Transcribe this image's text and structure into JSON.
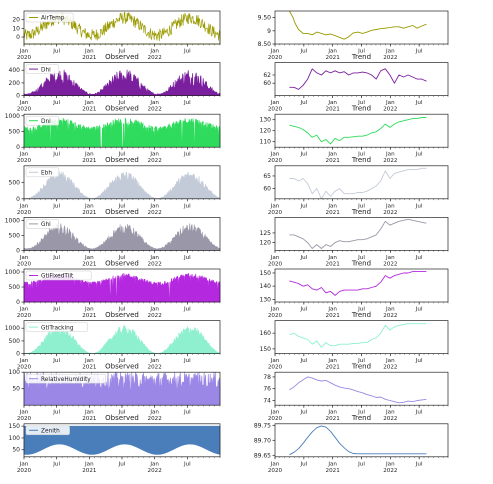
{
  "x_tick_labels": [
    {
      "month": "Jan",
      "year": "2020"
    },
    {
      "month": "Jul",
      "year": ""
    },
    {
      "month": "Jan",
      "year": "2021"
    },
    {
      "month": "Jul",
      "year": ""
    },
    {
      "month": "Jan",
      "year": "2022"
    },
    {
      "month": "Jul",
      "year": ""
    }
  ],
  "left_subtitle": "Observed",
  "right_subtitle": "Trend",
  "chart_data": [
    {
      "type": "area",
      "panel": "observed",
      "variable": "AirTemp",
      "color": "#9a9a00",
      "ylim": [
        -8,
        30
      ],
      "yticks": [
        0,
        10,
        20
      ],
      "x_range": [
        "2020-01",
        "2022-12"
      ],
      "pattern": "seasonal sine, mean ~12, amplitude ~10, high noise"
    },
    {
      "type": "area",
      "panel": "observed",
      "variable": "Dhi",
      "color": "#7a1f9e",
      "ylim": [
        0,
        520
      ],
      "yticks": [
        0,
        200,
        400
      ],
      "x_range": [
        "2020-01",
        "2022-12"
      ],
      "pattern": "seasonal peak in summer ~450"
    },
    {
      "type": "area",
      "panel": "observed",
      "variable": "Dni",
      "color": "#2edb5c",
      "ylim": [
        0,
        1050
      ],
      "yticks": [
        0,
        500,
        1000
      ],
      "x_range": [
        "2020-01",
        "2022-12"
      ],
      "pattern": "dense bars up to ~950 with gaps"
    },
    {
      "type": "area",
      "panel": "observed",
      "variable": "Ebh",
      "color": "#c4cbd8",
      "ylim": [
        0,
        1000
      ],
      "yticks": [
        0,
        500
      ],
      "x_range": [
        "2020-01",
        "2022-12"
      ],
      "pattern": "seasonal peak ~850 in summer"
    },
    {
      "type": "area",
      "panel": "observed",
      "variable": "Ghi",
      "color": "#9a98a8",
      "ylim": [
        0,
        1100
      ],
      "yticks": [
        0,
        500,
        1000
      ],
      "x_range": [
        "2020-01",
        "2022-12"
      ],
      "pattern": "seasonal peak ~900 in summer"
    },
    {
      "type": "area",
      "panel": "observed",
      "variable": "GtiFixedTilt",
      "color": "#b428e0",
      "ylim": [
        0,
        1100
      ],
      "yticks": [
        0,
        500,
        1000
      ],
      "x_range": [
        "2020-01",
        "2022-12"
      ],
      "pattern": "dense bars ~950 with winter dips"
    },
    {
      "type": "area",
      "panel": "observed",
      "variable": "GtiTracking",
      "color": "#8ff0d0",
      "ylim": [
        0,
        1300
      ],
      "yticks": [
        0,
        500,
        1000
      ],
      "x_range": [
        "2020-01",
        "2022-12"
      ],
      "pattern": "seasonal peak ~1100 in summer"
    },
    {
      "type": "area",
      "panel": "observed",
      "variable": "RelativeHumidity",
      "color": "#9b88e6",
      "ylim": [
        0,
        100
      ],
      "yticks": [
        50,
        100
      ],
      "x_range": [
        "2020-01",
        "2022-12"
      ],
      "pattern": "noisy 20-100, mean ~70"
    },
    {
      "type": "area",
      "panel": "observed",
      "variable": "Zenith",
      "color": "#4a7ebb",
      "ylim": [
        20,
        160
      ],
      "yticks": [
        50,
        100,
        150
      ],
      "x_range": [
        "2020-01",
        "2022-12"
      ],
      "pattern": "daily range band ~30-150 with seasonal shift"
    },
    {
      "type": "line",
      "panel": "trend",
      "color": "#9a9a00",
      "x": [
        0,
        0.8,
        1.2,
        2,
        3,
        4,
        5,
        6,
        7,
        8,
        9,
        10,
        11,
        12,
        12.8,
        13.5,
        14,
        15,
        16,
        17,
        18,
        19,
        20,
        21,
        22,
        23,
        24,
        25,
        26,
        27,
        28,
        29,
        30
      ],
      "y": [
        9.75,
        9.5,
        9.3,
        9.05,
        8.9,
        8.9,
        8.85,
        8.95,
        8.9,
        8.85,
        8.88,
        8.82,
        8.75,
        8.68,
        8.75,
        8.85,
        8.92,
        8.95,
        8.9,
        8.95,
        9.02,
        9.05,
        9.08,
        9.1,
        9.12,
        9.15,
        9.15,
        9.1,
        9.15,
        9.2,
        9.1,
        9.18,
        9.25
      ],
      "ylim": [
        8.5,
        9.75
      ],
      "yticks": [
        8.5,
        9.0,
        9.5
      ]
    },
    {
      "type": "line",
      "panel": "trend",
      "color": "#7a1f9e",
      "x": [
        0,
        1,
        2,
        3,
        4,
        5,
        6,
        7,
        8,
        9,
        10,
        11,
        12,
        13,
        14,
        15,
        16,
        17,
        18,
        19,
        20,
        21,
        22,
        23,
        24,
        25,
        26,
        27,
        28,
        29,
        30
      ],
      "y": [
        59,
        59,
        58.5,
        59.5,
        61,
        63.5,
        62.5,
        62,
        63,
        62.5,
        63,
        62.5,
        62.8,
        62,
        62.5,
        62.5,
        62.7,
        62.5,
        62,
        61,
        63,
        63.5,
        62,
        60,
        62,
        61.5,
        62,
        61.5,
        61,
        61,
        60.5
      ],
      "ylim": [
        57,
        65
      ],
      "yticks": [
        60,
        62
      ]
    },
    {
      "type": "line",
      "panel": "trend",
      "color": "#2edb5c",
      "x": [
        0,
        1,
        2,
        3,
        4,
        5,
        6,
        7,
        8,
        9,
        10,
        11,
        12,
        13,
        14,
        15,
        16,
        17,
        18,
        19,
        20,
        21,
        22,
        23,
        24,
        25,
        26,
        27,
        28,
        29,
        30
      ],
      "y": [
        125,
        124,
        123,
        121,
        118,
        114,
        116,
        110,
        112,
        108,
        113,
        111,
        114,
        114,
        114.5,
        115,
        115,
        116,
        118,
        119,
        122,
        126,
        123,
        126,
        128,
        129,
        130,
        131,
        131,
        132,
        132
      ],
      "ylim": [
        105,
        135
      ],
      "yticks": [
        110,
        120,
        130
      ]
    },
    {
      "type": "line",
      "panel": "trend",
      "color": "#c4cbd8",
      "x": [
        0,
        1,
        2,
        3,
        4,
        5,
        6,
        7,
        8,
        9,
        10,
        11,
        12,
        13,
        14,
        15,
        16,
        17,
        18,
        19,
        20,
        21,
        22,
        23,
        24,
        25,
        26,
        27,
        28,
        29,
        30
      ],
      "y": [
        64,
        64,
        63,
        64,
        62,
        58,
        60,
        56,
        59,
        57,
        59,
        60,
        58,
        58,
        58,
        58.5,
        58.5,
        59,
        60,
        61,
        63,
        67,
        64,
        66,
        66.5,
        67,
        67.5,
        67.5,
        67.5,
        68,
        68
      ],
      "ylim": [
        56,
        69
      ],
      "yticks": [
        60,
        65
      ]
    },
    {
      "type": "line",
      "panel": "trend",
      "color": "#9a98a8",
      "x": [
        0,
        1,
        2,
        3,
        4,
        5,
        6,
        7,
        8,
        9,
        10,
        11,
        12,
        13,
        14,
        15,
        16,
        17,
        18,
        19,
        20,
        21,
        22,
        23,
        24,
        25,
        26,
        27,
        28,
        29,
        30
      ],
      "y": [
        124,
        124,
        123,
        122,
        120,
        117,
        119,
        117,
        119,
        118,
        120,
        121,
        120.5,
        120.5,
        121,
        121.5,
        121.5,
        122,
        123,
        124,
        127,
        131,
        129,
        130,
        131,
        131.5,
        132,
        131.5,
        131,
        130.5,
        130
      ],
      "ylim": [
        116,
        133
      ],
      "yticks": [
        120,
        125
      ]
    },
    {
      "type": "line",
      "panel": "trend",
      "color": "#b428e0",
      "x": [
        0,
        1,
        2,
        3,
        4,
        5,
        6,
        7,
        8,
        9,
        10,
        11,
        12,
        13,
        14,
        15,
        16,
        17,
        18,
        19,
        20,
        21,
        22,
        23,
        24,
        25,
        26,
        27,
        28,
        29,
        30
      ],
      "y": [
        144,
        143,
        142,
        140,
        141,
        138,
        137,
        139,
        135,
        136,
        133,
        136,
        137,
        137,
        137,
        137,
        138,
        138,
        139,
        140,
        143,
        148,
        146,
        148,
        149,
        150,
        150,
        151,
        151,
        151,
        151
      ],
      "ylim": [
        128,
        153
      ],
      "yticks": [
        130,
        140,
        150
      ]
    },
    {
      "type": "line",
      "panel": "trend",
      "color": "#8ff0d0",
      "x": [
        0,
        1,
        2,
        3,
        4,
        5,
        6,
        7,
        8,
        9,
        10,
        11,
        12,
        13,
        14,
        15,
        16,
        17,
        18,
        19,
        20,
        21,
        22,
        23,
        24,
        25,
        26,
        27,
        28,
        29,
        30
      ],
      "y": [
        159,
        160,
        158,
        157,
        156,
        153,
        155,
        151,
        154,
        152,
        152,
        153,
        153,
        153,
        153.5,
        153.5,
        154,
        154,
        156,
        157,
        160,
        165,
        162,
        164,
        165,
        165.5,
        166,
        166,
        166,
        166,
        166
      ],
      "ylim": [
        147,
        168
      ],
      "yticks": [
        150,
        160
      ]
    },
    {
      "type": "line",
      "panel": "trend",
      "color": "#9b88e6",
      "x": [
        0,
        1,
        2,
        3,
        4,
        5,
        6,
        7,
        8,
        9,
        10,
        11,
        12,
        13,
        14,
        15,
        16,
        17,
        18,
        19,
        20,
        21,
        22,
        23,
        24,
        25,
        26,
        27,
        28,
        29,
        30
      ],
      "y": [
        75.8,
        76.3,
        77,
        77.5,
        78,
        77.8,
        77.5,
        77.3,
        77.4,
        77,
        76.6,
        76.3,
        76.1,
        76,
        75.8,
        75.5,
        75.3,
        75,
        74.8,
        74.5,
        74.6,
        74.2,
        74,
        73.8,
        73.6,
        73.7,
        73.9,
        73.8,
        74,
        74.1,
        74.2
      ],
      "ylim": [
        73.2,
        78.8
      ],
      "yticks": [
        74,
        76,
        78
      ]
    },
    {
      "type": "line",
      "panel": "trend",
      "color": "#4a7ebb",
      "x": [
        0,
        1,
        2,
        3,
        4,
        5,
        6,
        7,
        8,
        9,
        10,
        11,
        12,
        13,
        14,
        15,
        16,
        17,
        18,
        19,
        20,
        21,
        22,
        23,
        24,
        25,
        26,
        27,
        28,
        29,
        30
      ],
      "y": [
        89.652,
        89.66,
        89.672,
        89.69,
        89.71,
        89.728,
        89.742,
        89.748,
        89.744,
        89.73,
        89.71,
        89.69,
        89.675,
        89.662,
        89.656,
        89.655,
        89.655,
        89.655,
        89.655,
        89.655,
        89.655,
        89.655,
        89.655,
        89.655,
        89.655,
        89.655,
        89.655,
        89.655,
        89.655,
        89.655,
        89.655
      ],
      "ylim": [
        89.645,
        89.755
      ],
      "yticks": [
        89.65,
        89.7,
        89.75
      ]
    }
  ]
}
